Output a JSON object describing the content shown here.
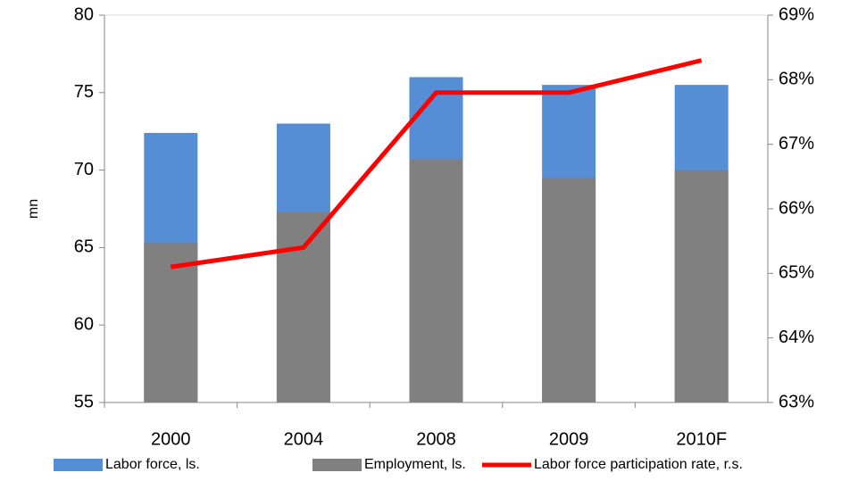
{
  "chart_data": {
    "type": "bar",
    "y_label": "mn",
    "categories": [
      "2000",
      "2004",
      "2008",
      "2009",
      "2010F"
    ],
    "series": [
      {
        "name": "Labor force, ls.",
        "color": "#558ed5",
        "values": [
          72.4,
          73.0,
          76.0,
          75.5,
          75.5
        ]
      },
      {
        "name": "Employment, ls.",
        "color": "#808080",
        "values": [
          65.3,
          67.3,
          70.7,
          69.5,
          70.0
        ]
      },
      {
        "name": "Labor force participation rate, r.s.",
        "color": "#ff0000",
        "axis": "y2",
        "type": "line",
        "values": [
          65.1,
          65.4,
          67.8,
          67.8,
          68.3
        ]
      }
    ],
    "ylim": [
      55,
      80
    ],
    "yticks": [
      55,
      60,
      65,
      70,
      75,
      80
    ],
    "y2lim": [
      63,
      69
    ],
    "y2ticks": [
      {
        "value": 63,
        "label": "63%"
      },
      {
        "value": 64,
        "label": "64%"
      },
      {
        "value": 65,
        "label": "65%"
      },
      {
        "value": 66,
        "label": "66%"
      },
      {
        "value": 67,
        "label": "67%"
      },
      {
        "value": 68,
        "label": "68%"
      },
      {
        "value": 69,
        "label": "69%"
      }
    ],
    "legend": "bottom"
  }
}
